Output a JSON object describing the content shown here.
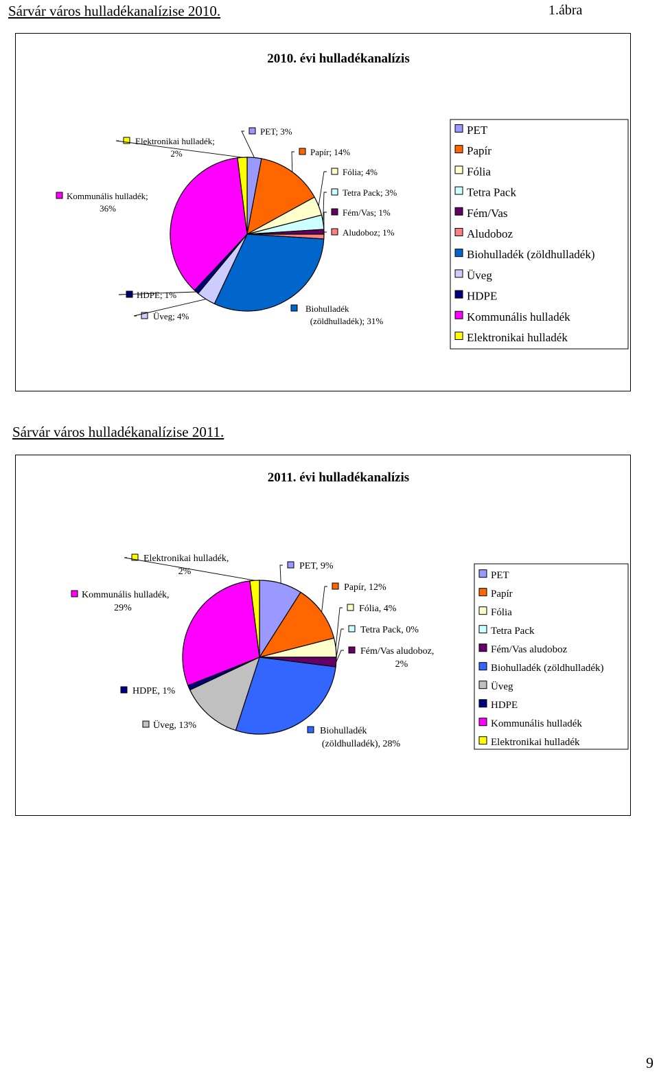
{
  "page": {
    "heading_2010": "Sárvár város hulladékanalízise 2010.",
    "figure_number": "1.ábra",
    "heading_2011": "Sárvár város hulladékanalízise 2011.",
    "page_number": "9"
  },
  "chart_data": [
    {
      "type": "pie",
      "title": "2010. évi hulladékanalízis",
      "categories": [
        "PET",
        "Papír",
        "Fólia",
        "Tetra Pack",
        "Fém/Vas",
        "Aludoboz",
        "Biohulladék (zöldhulladék)",
        "Üveg",
        "HDPE",
        "Kommunális hulladék",
        "Elektronikai hulladék"
      ],
      "values": [
        3,
        14,
        4,
        3,
        1,
        1,
        31,
        4,
        1,
        36,
        2
      ],
      "colors": [
        "#9999ff",
        "#ff6600",
        "#ffffcc",
        "#ccffff",
        "#660066",
        "#ff8080",
        "#0066cc",
        "#ccccff",
        "#000080",
        "#ff00ff",
        "#ffff00"
      ],
      "data_labels": [
        {
          "lines": [
            "PET; 3%"
          ]
        },
        {
          "lines": [
            "Papír; 14%"
          ]
        },
        {
          "lines": [
            "Fólia; 4%"
          ]
        },
        {
          "lines": [
            "Tetra Pack; 3%"
          ]
        },
        {
          "lines": [
            "Fém/Vas; 1%"
          ]
        },
        {
          "lines": [
            "Aludoboz; 1%"
          ]
        },
        {
          "lines": [
            "Biohulladék",
            "(zöldhulladék); 31%"
          ]
        },
        {
          "lines": [
            "Üveg; 4%"
          ]
        },
        {
          "lines": [
            "HDPE; 1%"
          ]
        },
        {
          "lines": [
            "Kommunális hulladék;",
            "36%"
          ]
        },
        {
          "lines": [
            "Elektronikai hulladék;",
            "2%"
          ]
        }
      ],
      "legend": {
        "position": "right",
        "entries": [
          "PET",
          "Papír",
          "Fólia",
          "Tetra Pack",
          "Fém/Vas",
          "Aludoboz",
          "Biohulladék (zöldhulladék)",
          "Üveg",
          "HDPE",
          "Kommunális hulladék",
          "Elektronikai hulladék"
        ]
      }
    },
    {
      "type": "pie",
      "title": "2011. évi hulladékanalízis",
      "categories": [
        "PET",
        "Papír",
        "Fólia",
        "Tetra Pack",
        "Fém/Vas aludoboz",
        "Biohulladék (zöldhulladék)",
        "Üveg",
        "HDPE",
        "Kommunális hulladék",
        "Elektronikai hulladék"
      ],
      "values": [
        9,
        12,
        4,
        0,
        2,
        28,
        13,
        1,
        29,
        2
      ],
      "colors": [
        "#9999ff",
        "#ff6600",
        "#ffffcc",
        "#ccffff",
        "#660066",
        "#3366ff",
        "#c0c0c0",
        "#000080",
        "#ff00ff",
        "#ffff00"
      ],
      "data_labels": [
        {
          "lines": [
            "PET, 9%"
          ]
        },
        {
          "lines": [
            "Papír, 12%"
          ]
        },
        {
          "lines": [
            "Fólia, 4%"
          ]
        },
        {
          "lines": [
            "Tetra Pack, 0%"
          ]
        },
        {
          "lines": [
            "Fém/Vas aludoboz,",
            "2%"
          ]
        },
        {
          "lines": [
            "Biohulladék",
            "(zöldhulladék), 28%"
          ]
        },
        {
          "lines": [
            "Üveg, 13%"
          ]
        },
        {
          "lines": [
            "HDPE, 1%"
          ]
        },
        {
          "lines": [
            "Kommunális hulladék,",
            "29%"
          ]
        },
        {
          "lines": [
            "Elektronikai hulladék,",
            "2%"
          ]
        }
      ],
      "legend": {
        "position": "right",
        "entries": [
          "PET",
          "Papír",
          "Fólia",
          "Tetra Pack",
          "Fém/Vas aludoboz",
          "Biohulladék (zöldhulladék)",
          "Üveg",
          "HDPE",
          "Kommunális hulladék",
          "Elektronikai hulladék"
        ]
      }
    }
  ]
}
